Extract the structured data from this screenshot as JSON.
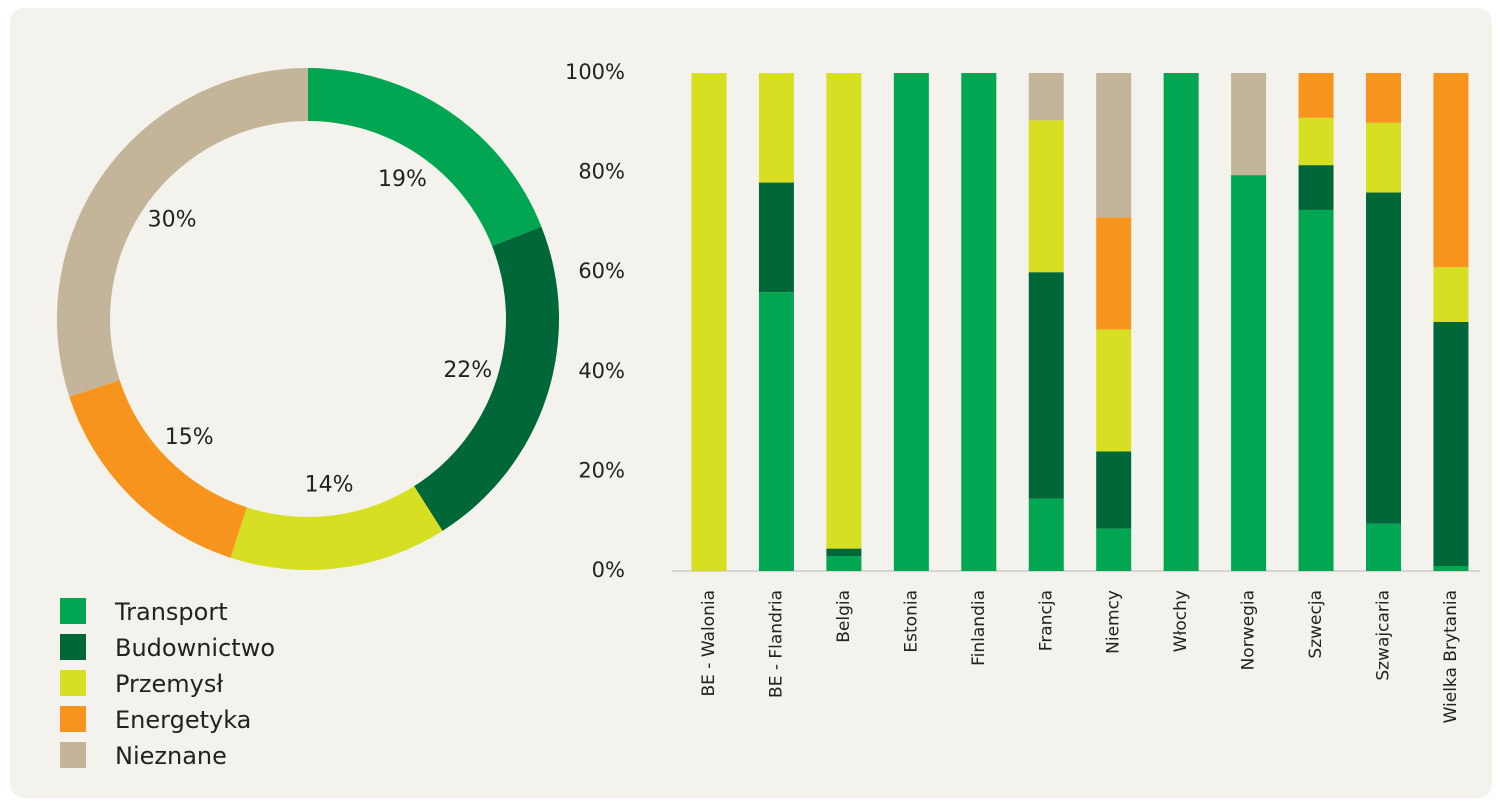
{
  "chart_data": [
    {
      "type": "pie",
      "donut": true,
      "values": [
        19,
        22,
        14,
        15,
        30
      ],
      "value_labels": [
        "19%",
        "22%",
        "14%",
        "15%",
        "30%"
      ],
      "colors": [
        "#00a651",
        "#006838",
        "#d7df23",
        "#f7941d",
        "#c4b59a"
      ]
    },
    {
      "type": "stacked_bar",
      "categories": [
        "BE - Walonia",
        "BE - Flandria",
        "Belgia",
        "Estonia",
        "Finlandia",
        "Francja",
        "Niemcy",
        "Włochy",
        "Norwegia",
        "Szwecja",
        "Szwajcaria",
        "Wielka Brytania"
      ],
      "series": [
        {
          "name": "Transport",
          "color": "#00a651",
          "values": [
            0,
            56,
            3,
            100,
            100,
            14.5,
            8.5,
            100,
            79.5,
            72.5,
            9.5,
            1
          ]
        },
        {
          "name": "Budownictwo",
          "color": "#006838",
          "values": [
            0,
            22,
            1.5,
            0,
            0,
            45.5,
            15.5,
            0,
            0,
            9,
            66.5,
            49
          ]
        },
        {
          "name": "Przemysł",
          "color": "#d7df23",
          "values": [
            100,
            22,
            95.5,
            0,
            0,
            30.5,
            24.5,
            0,
            0,
            9.5,
            14,
            11
          ]
        },
        {
          "name": "Energetyka",
          "color": "#f7941d",
          "values": [
            0,
            0,
            0,
            0,
            0,
            0,
            22.5,
            0,
            0,
            9,
            10,
            39
          ]
        },
        {
          "name": "Nieznane",
          "color": "#c4b59a",
          "values": [
            0,
            0,
            0,
            0,
            0,
            9.5,
            29,
            0,
            20.5,
            0,
            0,
            0
          ]
        }
      ],
      "ylim": [
        0,
        100
      ],
      "yticks": [
        {
          "value": 0,
          "label": "0%"
        },
        {
          "value": 20,
          "label": "20%"
        },
        {
          "value": 40,
          "label": "40%"
        },
        {
          "value": 60,
          "label": "60%"
        },
        {
          "value": 80,
          "label": "80%"
        },
        {
          "value": 100,
          "label": "100%"
        }
      ]
    }
  ]
}
